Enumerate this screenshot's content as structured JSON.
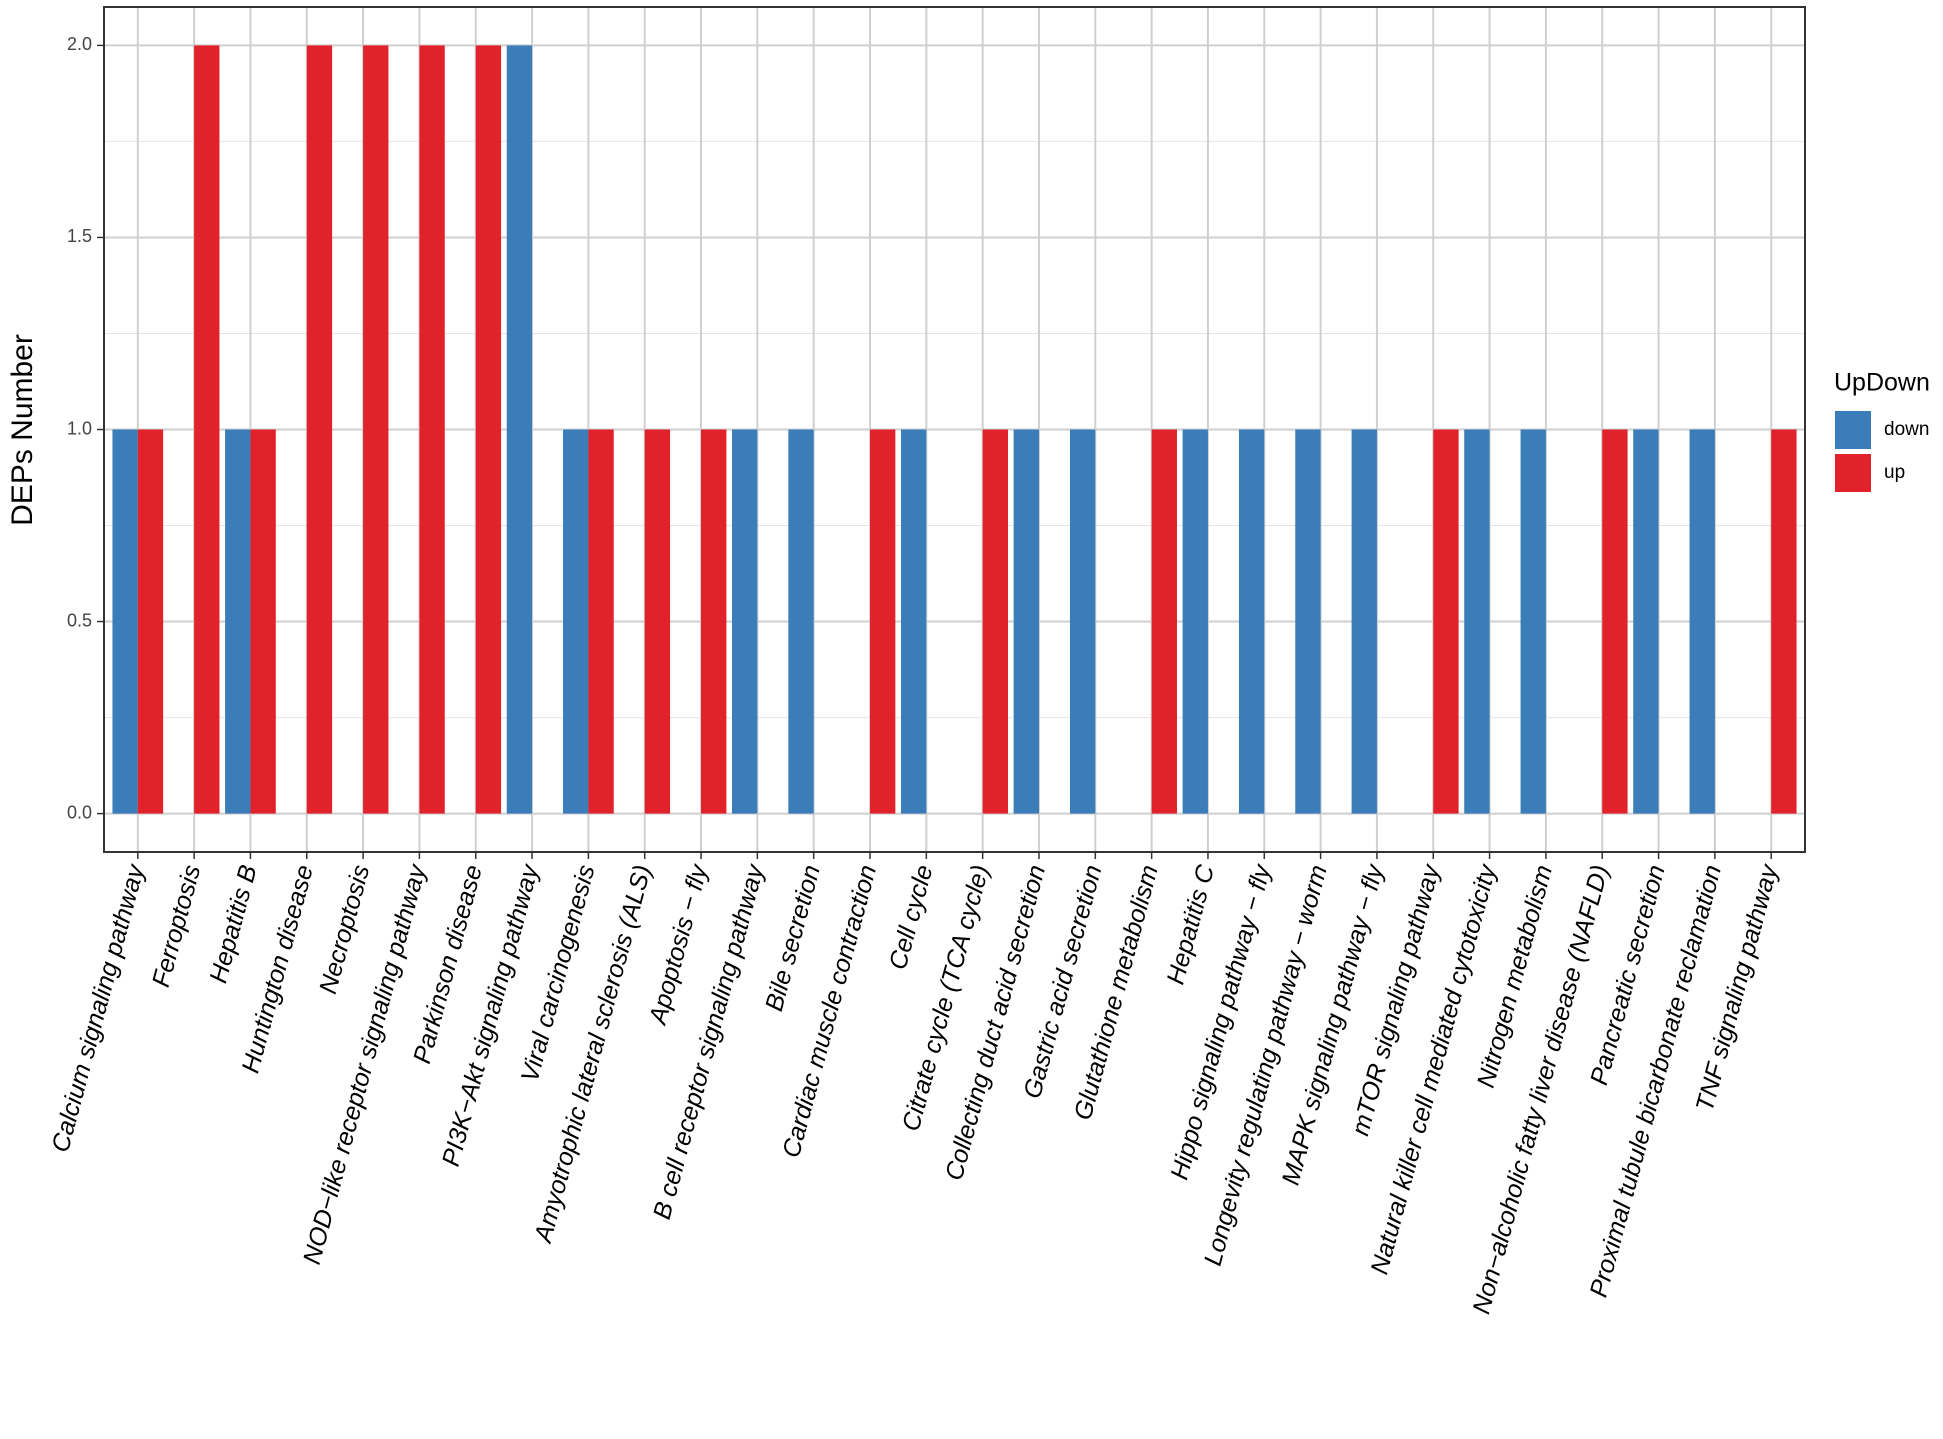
{
  "chart_data": {
    "type": "bar",
    "y_label": "DEPs Number",
    "legend_title": "UpDown",
    "categories": [
      "Calcium signaling pathway",
      "Ferroptosis",
      "Hepatitis B",
      "Huntington disease",
      "Necroptosis",
      "NOD−like receptor signaling pathway",
      "Parkinson disease",
      "PI3K−Akt signaling pathway",
      "Viral carcinogenesis",
      "Amyotrophic lateral sclerosis (ALS)",
      "Apoptosis − fly",
      "B cell receptor signaling pathway",
      "Bile secretion",
      "Cardiac muscle contraction",
      "Cell cycle",
      "Citrate cycle (TCA cycle)",
      "Collecting duct acid secretion",
      "Gastric acid secretion",
      "Glutathione metabolism",
      "Hepatitis C",
      "Hippo signaling pathway − fly",
      "Longevity regulating pathway − worm",
      "MAPK signaling pathway − fly",
      "mTOR signaling pathway",
      "Natural killer cell mediated cytotoxicity",
      "Nitrogen metabolism",
      "Non−alcoholic fatty liver disease (NAFLD)",
      "Pancreatic secretion",
      "Proximal tubule bicarbonate reclamation",
      "TNF signaling pathway"
    ],
    "series": [
      {
        "name": "down",
        "color": "#3a7db8",
        "values": [
          1,
          null,
          1,
          null,
          null,
          null,
          null,
          2,
          1,
          null,
          null,
          1,
          1,
          null,
          1,
          null,
          1,
          1,
          null,
          1,
          1,
          1,
          1,
          null,
          1,
          1,
          null,
          1,
          1,
          null
        ]
      },
      {
        "name": "up",
        "color": "#e1222a",
        "values": [
          1,
          2,
          1,
          2,
          2,
          2,
          2,
          null,
          1,
          1,
          1,
          null,
          null,
          1,
          null,
          1,
          null,
          null,
          1,
          null,
          null,
          null,
          null,
          1,
          null,
          null,
          1,
          null,
          null,
          1
        ]
      }
    ],
    "ylim": [
      -0.1,
      2.1
    ],
    "yticks": [
      {
        "value": 0,
        "label": "0.0"
      },
      0.5,
      {
        "value": 1,
        "label": "1.0"
      },
      1.5,
      {
        "value": 2,
        "label": "2.0"
      }
    ],
    "grid": true,
    "legend_position": "right"
  }
}
